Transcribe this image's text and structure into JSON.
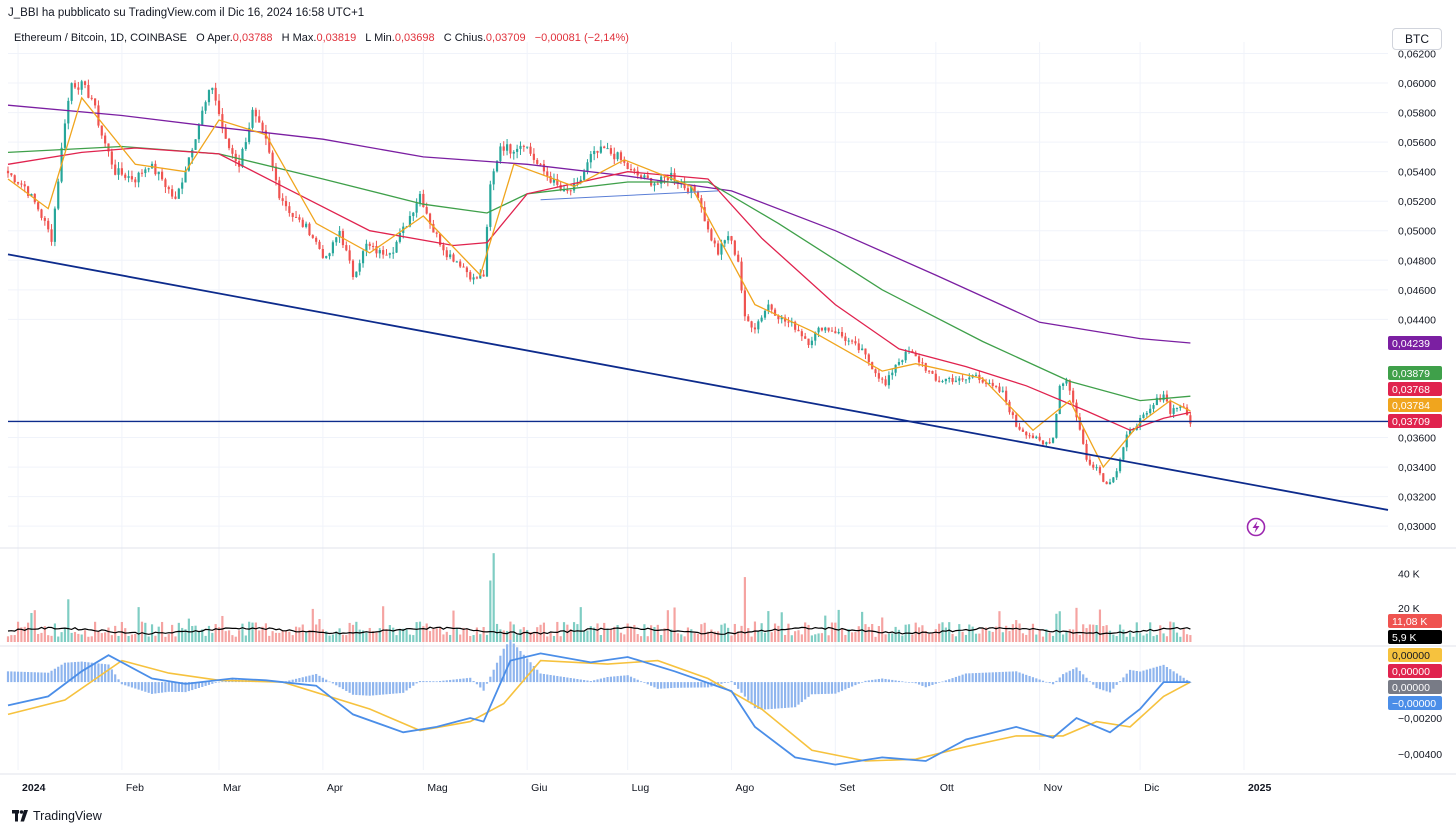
{
  "header": {
    "publisher": "J_BBI ha pubblicato su TradingView.com il Dic 16, 2024 16:58 UTC+1",
    "currency": "BTC"
  },
  "legend": {
    "symbol": "Ethereum / Bitcoin, 1D, COINBASE",
    "open_label": "O",
    "open_key": "Aper.",
    "open_value": "0,03788",
    "high_label": "H",
    "high_key": "Max.",
    "high_value": "0,03819",
    "low_label": "L",
    "low_key": "Min.",
    "low_value": "0,03698",
    "close_label": "C",
    "close_key": "Chius.",
    "close_value": "0,03709",
    "change": "−0,00081 (−2,14%)"
  },
  "footer": {
    "brand": "TradingView"
  },
  "colors": {
    "up": "#26a69a",
    "down": "#ef5350",
    "up_volume": "#7fcdc3",
    "down_volume": "#f5a3a1",
    "ma_fast": "#f0a51e",
    "ma_red": "#e0234e",
    "ma_green": "#3fa04a",
    "ma_purple": "#7b1fa2",
    "trendline": "#0d2b8c",
    "macd": "#4b8ee8",
    "signal": "#f6c23e"
  },
  "chart_data": {
    "type": "candlestick",
    "x_axis": {
      "labels": [
        {
          "label": "2024",
          "date": "2024-01-01",
          "bold": true
        },
        {
          "label": "Feb",
          "date": "2024-02-01"
        },
        {
          "label": "Mar",
          "date": "2024-03-01"
        },
        {
          "label": "Apr",
          "date": "2024-04-01"
        },
        {
          "label": "Mag",
          "date": "2024-05-01"
        },
        {
          "label": "Giu",
          "date": "2024-06-01"
        },
        {
          "label": "Lug",
          "date": "2024-07-01"
        },
        {
          "label": "Ago",
          "date": "2024-08-01"
        },
        {
          "label": "Set",
          "date": "2024-09-01"
        },
        {
          "label": "Ott",
          "date": "2024-10-01"
        },
        {
          "label": "Nov",
          "date": "2024-11-01"
        },
        {
          "label": "Dic",
          "date": "2024-12-01"
        },
        {
          "label": "2025",
          "date": "2025-01-01",
          "bold": true
        }
      ],
      "range": [
        "2023-12-29",
        "2025-02-13"
      ]
    },
    "price_axis": {
      "range": [
        0.0292,
        0.0621
      ],
      "ticks": [
        {
          "v": 0.062,
          "label": "0,06200"
        },
        {
          "v": 0.06,
          "label": "0,06000"
        },
        {
          "v": 0.058,
          "label": "0,05800"
        },
        {
          "v": 0.056,
          "label": "0,05600"
        },
        {
          "v": 0.054,
          "label": "0,05400"
        },
        {
          "v": 0.052,
          "label": "0,05200"
        },
        {
          "v": 0.05,
          "label": "0,05000"
        },
        {
          "v": 0.048,
          "label": "0,04800"
        },
        {
          "v": 0.046,
          "label": "0,04600"
        },
        {
          "v": 0.044,
          "label": "0,04400"
        },
        {
          "v": 0.036,
          "label": "0,03600"
        },
        {
          "v": 0.034,
          "label": "0,03400"
        },
        {
          "v": 0.032,
          "label": "0,03200"
        },
        {
          "v": 0.03,
          "label": "0,03000"
        }
      ]
    },
    "close_path": [
      [
        "2023-12-29",
        0.0539
      ],
      [
        "2024-01-03",
        0.053
      ],
      [
        "2024-01-07",
        0.0515
      ],
      [
        "2024-01-11",
        0.0495
      ],
      [
        "2024-01-13",
        0.0535
      ],
      [
        "2024-01-15",
        0.0575
      ],
      [
        "2024-01-17",
        0.06
      ],
      [
        "2024-01-20",
        0.0598
      ],
      [
        "2024-01-23",
        0.059
      ],
      [
        "2024-01-26",
        0.0565
      ],
      [
        "2024-01-30",
        0.054
      ],
      [
        "2024-02-05",
        0.0535
      ],
      [
        "2024-02-09",
        0.0545
      ],
      [
        "2024-02-13",
        0.0535
      ],
      [
        "2024-02-17",
        0.052
      ],
      [
        "2024-02-21",
        0.055
      ],
      [
        "2024-02-25",
        0.058
      ],
      [
        "2024-02-28",
        0.0598
      ],
      [
        "2024-03-03",
        0.056
      ],
      [
        "2024-03-07",
        0.0545
      ],
      [
        "2024-03-11",
        0.058
      ],
      [
        "2024-03-15",
        0.056
      ],
      [
        "2024-03-19",
        0.0525
      ],
      [
        "2024-03-23",
        0.051
      ],
      [
        "2024-03-28",
        0.05
      ],
      [
        "2024-04-02",
        0.048
      ],
      [
        "2024-04-06",
        0.05
      ],
      [
        "2024-04-10",
        0.047
      ],
      [
        "2024-04-14",
        0.049
      ],
      [
        "2024-04-18",
        0.0485
      ],
      [
        "2024-04-22",
        0.0488
      ],
      [
        "2024-04-26",
        0.0505
      ],
      [
        "2024-04-30",
        0.0525
      ],
      [
        "2024-05-04",
        0.05
      ],
      [
        "2024-05-08",
        0.0485
      ],
      [
        "2024-05-12",
        0.0478
      ],
      [
        "2024-05-16",
        0.0467
      ],
      [
        "2024-05-19",
        0.047
      ],
      [
        "2024-05-21",
        0.053
      ],
      [
        "2024-05-24",
        0.0558
      ],
      [
        "2024-05-27",
        0.0555
      ],
      [
        "2024-05-31",
        0.056
      ],
      [
        "2024-06-04",
        0.0545
      ],
      [
        "2024-06-08",
        0.0535
      ],
      [
        "2024-06-12",
        0.0525
      ],
      [
        "2024-06-16",
        0.053
      ],
      [
        "2024-06-20",
        0.055
      ],
      [
        "2024-06-24",
        0.0555
      ],
      [
        "2024-06-28",
        0.055
      ],
      [
        "2024-07-02",
        0.054
      ],
      [
        "2024-07-06",
        0.0535
      ],
      [
        "2024-07-10",
        0.0532
      ],
      [
        "2024-07-14",
        0.0538
      ],
      [
        "2024-07-18",
        0.053
      ],
      [
        "2024-07-22",
        0.0525
      ],
      [
        "2024-07-25",
        0.05
      ],
      [
        "2024-07-28",
        0.0485
      ],
      [
        "2024-07-31",
        0.0497
      ],
      [
        "2024-08-03",
        0.048
      ],
      [
        "2024-08-05",
        0.044
      ],
      [
        "2024-08-08",
        0.0435
      ],
      [
        "2024-08-12",
        0.045
      ],
      [
        "2024-08-16",
        0.044
      ],
      [
        "2024-08-20",
        0.0435
      ],
      [
        "2024-08-24",
        0.0425
      ],
      [
        "2024-08-28",
        0.0435
      ],
      [
        "2024-09-01",
        0.0432
      ],
      [
        "2024-09-05",
        0.0425
      ],
      [
        "2024-09-09",
        0.0418
      ],
      [
        "2024-09-13",
        0.0405
      ],
      [
        "2024-09-16",
        0.0395
      ],
      [
        "2024-09-19",
        0.041
      ],
      [
        "2024-09-23",
        0.0418
      ],
      [
        "2024-09-27",
        0.041
      ],
      [
        "2024-10-01",
        0.0398
      ],
      [
        "2024-10-05",
        0.04
      ],
      [
        "2024-10-09",
        0.0398
      ],
      [
        "2024-10-13",
        0.0403
      ],
      [
        "2024-10-17",
        0.0395
      ],
      [
        "2024-10-21",
        0.039
      ],
      [
        "2024-10-25",
        0.0368
      ],
      [
        "2024-10-29",
        0.0362
      ],
      [
        "2024-11-02",
        0.0355
      ],
      [
        "2024-11-05",
        0.036
      ],
      [
        "2024-11-07",
        0.0395
      ],
      [
        "2024-11-09",
        0.04
      ],
      [
        "2024-11-12",
        0.0375
      ],
      [
        "2024-11-15",
        0.0345
      ],
      [
        "2024-11-18",
        0.034
      ],
      [
        "2024-11-21",
        0.0328
      ],
      [
        "2024-11-24",
        0.0338
      ],
      [
        "2024-11-27",
        0.036
      ],
      [
        "2024-11-30",
        0.037
      ],
      [
        "2024-12-03",
        0.0375
      ],
      [
        "2024-12-06",
        0.0385
      ],
      [
        "2024-12-08",
        0.039
      ],
      [
        "2024-12-10",
        0.0378
      ],
      [
        "2024-12-13",
        0.0382
      ],
      [
        "2024-12-16",
        0.0371
      ]
    ],
    "moving_averages": [
      {
        "key": "ma_purple",
        "value": "0,04239",
        "points": [
          [
            "2023-12-29",
            0.0585
          ],
          [
            "2024-02-01",
            0.0578
          ],
          [
            "2024-03-01",
            0.057
          ],
          [
            "2024-04-01",
            0.0562
          ],
          [
            "2024-05-01",
            0.055
          ],
          [
            "2024-06-01",
            0.0545
          ],
          [
            "2024-07-01",
            0.0537
          ],
          [
            "2024-08-01",
            0.0527
          ],
          [
            "2024-09-01",
            0.05
          ],
          [
            "2024-10-01",
            0.047
          ],
          [
            "2024-11-01",
            0.0438
          ],
          [
            "2024-12-01",
            0.0427
          ],
          [
            "2024-12-16",
            0.0424
          ]
        ]
      },
      {
        "key": "ma_green",
        "value": "0,03879",
        "points": [
          [
            "2023-12-29",
            0.0553
          ],
          [
            "2024-02-01",
            0.0557
          ],
          [
            "2024-03-01",
            0.0552
          ],
          [
            "2024-04-01",
            0.0535
          ],
          [
            "2024-05-01",
            0.0518
          ],
          [
            "2024-05-20",
            0.0512
          ],
          [
            "2024-06-01",
            0.0525
          ],
          [
            "2024-07-01",
            0.0533
          ],
          [
            "2024-07-25",
            0.0533
          ],
          [
            "2024-08-15",
            0.0505
          ],
          [
            "2024-09-15",
            0.046
          ],
          [
            "2024-10-15",
            0.0425
          ],
          [
            "2024-11-10",
            0.0398
          ],
          [
            "2024-12-01",
            0.0385
          ],
          [
            "2024-12-16",
            0.0388
          ]
        ]
      },
      {
        "key": "ma_red",
        "value": "0,03768",
        "points": [
          [
            "2023-12-29",
            0.0545
          ],
          [
            "2024-01-20",
            0.0553
          ],
          [
            "2024-02-05",
            0.0556
          ],
          [
            "2024-03-01",
            0.0552
          ],
          [
            "2024-03-20",
            0.053
          ],
          [
            "2024-04-15",
            0.05
          ],
          [
            "2024-05-10",
            0.049
          ],
          [
            "2024-05-20",
            0.0492
          ],
          [
            "2024-06-01",
            0.0525
          ],
          [
            "2024-07-01",
            0.054
          ],
          [
            "2024-07-25",
            0.0535
          ],
          [
            "2024-08-10",
            0.0495
          ],
          [
            "2024-09-01",
            0.045
          ],
          [
            "2024-09-20",
            0.042
          ],
          [
            "2024-10-10",
            0.0408
          ],
          [
            "2024-10-28",
            0.0395
          ],
          [
            "2024-11-15",
            0.0378
          ],
          [
            "2024-11-28",
            0.0365
          ],
          [
            "2024-12-08",
            0.0373
          ],
          [
            "2024-12-16",
            0.0377
          ]
        ]
      },
      {
        "key": "ma_fast",
        "value": "0,03784",
        "points": [
          [
            "2023-12-29",
            0.0535
          ],
          [
            "2024-01-10",
            0.0515
          ],
          [
            "2024-01-20",
            0.059
          ],
          [
            "2024-02-05",
            0.0545
          ],
          [
            "2024-02-20",
            0.054
          ],
          [
            "2024-03-01",
            0.0575
          ],
          [
            "2024-03-15",
            0.0565
          ],
          [
            "2024-03-30",
            0.0505
          ],
          [
            "2024-04-15",
            0.0485
          ],
          [
            "2024-05-01",
            0.051
          ],
          [
            "2024-05-18",
            0.047
          ],
          [
            "2024-05-28",
            0.0545
          ],
          [
            "2024-06-15",
            0.053
          ],
          [
            "2024-06-30",
            0.0548
          ],
          [
            "2024-07-20",
            0.053
          ],
          [
            "2024-08-08",
            0.045
          ],
          [
            "2024-08-25",
            0.0432
          ],
          [
            "2024-09-15",
            0.0405
          ],
          [
            "2024-09-25",
            0.041
          ],
          [
            "2024-10-15",
            0.04
          ],
          [
            "2024-10-30",
            0.0365
          ],
          [
            "2024-11-10",
            0.0385
          ],
          [
            "2024-11-20",
            0.034
          ],
          [
            "2024-12-01",
            0.037
          ],
          [
            "2024-12-10",
            0.0385
          ],
          [
            "2024-12-16",
            0.0378
          ]
        ]
      }
    ],
    "trendlines": [
      {
        "from": [
          "2023-12-29",
          0.0484
        ],
        "to": [
          "2025-02-13",
          0.0311
        ]
      },
      {
        "from": [
          "2024-06-05",
          0.0521
        ],
        "to": [
          "2024-07-28",
          0.0527
        ]
      }
    ],
    "horizontal_line": 0.03709,
    "volume": {
      "ticks": [
        {
          "v": 40000,
          "label": "40 K"
        },
        {
          "v": 20000,
          "label": "20 K"
        }
      ],
      "max": 48000,
      "current": "11,08 K",
      "average": "5,9 K",
      "spikes": [
        [
          "2024-01-16",
          25000
        ],
        [
          "2024-05-21",
          36000
        ],
        [
          "2024-05-22",
          52000
        ],
        [
          "2024-08-05",
          38000
        ],
        [
          "2024-11-07",
          18000
        ],
        [
          "2024-11-12",
          20000
        ],
        [
          "2024-11-19",
          19000
        ]
      ]
    },
    "macd": {
      "ticks": [
        {
          "v": -0.002,
          "label": "−0,00200"
        },
        {
          "v": -0.004,
          "label": "−0,00400"
        }
      ],
      "range": [
        -0.0049,
        0.0019
      ],
      "badges": [
        "0,00000",
        "0,00000",
        "0,00000",
        "−0,00000"
      ],
      "macd_line": [
        [
          "2023-12-29",
          -0.0013
        ],
        [
          "2024-01-10",
          -0.0008
        ],
        [
          "2024-01-20",
          0.0006
        ],
        [
          "2024-01-28",
          0.0015
        ],
        [
          "2024-02-10",
          0.0002
        ],
        [
          "2024-02-20",
          -0.0001
        ],
        [
          "2024-03-05",
          0.0002
        ],
        [
          "2024-03-15",
          0.0001
        ],
        [
          "2024-03-30",
          -0.0002
        ],
        [
          "2024-04-10",
          -0.0018
        ],
        [
          "2024-04-25",
          -0.0028
        ],
        [
          "2024-05-05",
          -0.0025
        ],
        [
          "2024-05-15",
          -0.002
        ],
        [
          "2024-05-19",
          -0.0022
        ],
        [
          "2024-05-27",
          0.0012
        ],
        [
          "2024-06-05",
          0.0016
        ],
        [
          "2024-06-20",
          0.0011
        ],
        [
          "2024-07-01",
          0.0014
        ],
        [
          "2024-07-15",
          0.0006
        ],
        [
          "2024-08-01",
          -0.0005
        ],
        [
          "2024-08-08",
          -0.0025
        ],
        [
          "2024-08-20",
          -0.0042
        ],
        [
          "2024-09-01",
          -0.0046
        ],
        [
          "2024-09-15",
          -0.0042
        ],
        [
          "2024-09-28",
          -0.0044
        ],
        [
          "2024-10-10",
          -0.0032
        ],
        [
          "2024-10-25",
          -0.0025
        ],
        [
          "2024-11-05",
          -0.0031
        ],
        [
          "2024-11-12",
          -0.002
        ],
        [
          "2024-11-22",
          -0.0028
        ],
        [
          "2024-12-01",
          -0.0015
        ],
        [
          "2024-12-08",
          0.0
        ],
        [
          "2024-12-16",
          0.0
        ]
      ],
      "signal_line": [
        [
          "2023-12-29",
          -0.0018
        ],
        [
          "2024-01-15",
          -0.001
        ],
        [
          "2024-02-01",
          0.0012
        ],
        [
          "2024-02-15",
          0.0005
        ],
        [
          "2024-03-01",
          0.0001
        ],
        [
          "2024-03-20",
          0.0
        ],
        [
          "2024-04-15",
          -0.0015
        ],
        [
          "2024-04-30",
          -0.0027
        ],
        [
          "2024-05-15",
          -0.0022
        ],
        [
          "2024-05-25",
          -0.0012
        ],
        [
          "2024-06-05",
          0.0012
        ],
        [
          "2024-06-25",
          0.001
        ],
        [
          "2024-07-10",
          0.0012
        ],
        [
          "2024-07-25",
          0.0002
        ],
        [
          "2024-08-10",
          -0.0015
        ],
        [
          "2024-08-25",
          -0.0038
        ],
        [
          "2024-09-10",
          -0.0044
        ],
        [
          "2024-09-25",
          -0.0043
        ],
        [
          "2024-10-10",
          -0.0036
        ],
        [
          "2024-10-25",
          -0.003
        ],
        [
          "2024-11-08",
          -0.003
        ],
        [
          "2024-11-18",
          -0.0022
        ],
        [
          "2024-11-28",
          -0.0025
        ],
        [
          "2024-12-08",
          -0.0008
        ],
        [
          "2024-12-16",
          0.0
        ]
      ]
    }
  }
}
